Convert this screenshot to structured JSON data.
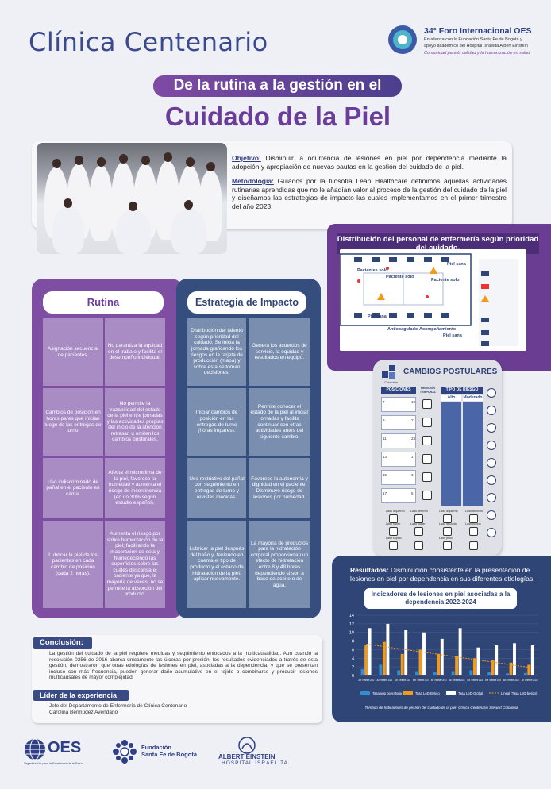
{
  "header": {
    "clinic": "Clínica Centenario",
    "forum_title": "34° Foro Internacional OES",
    "forum_sub1": "En alianza con la Fundación Santa Fe de Bogotá y",
    "forum_sub2": "apoyo académico del Hospital Israelita Albert Einstein",
    "forum_tag": "Comunidad para la calidad y la humanización en salud"
  },
  "title": {
    "line1": "De la rutina a la gestión en el",
    "line2": "Cuidado de la Piel"
  },
  "intro": {
    "objective_label": "Objetivo:",
    "objective": " Disminuir la ocurrencia de lesiones en piel por dependencia mediante la adopción y apropiación de nuevas pautas en la gestión del cuidado de la piel.",
    "method_label": "Metodología:",
    "method": " Guiados por la filosofía Lean Healthcare definimos aquellas actividades rutinarias aprendidas que no le añadían valor al proceso de la gestión del cuidado de la piel y diseñamos las estrategias de impacto las cuales implementamos en el primer trimestre del año 2023."
  },
  "distribution": {
    "title": "Distribución del personal de enfermería según prioridad del cuidado.",
    "labels": [
      "Pacientes solo",
      "Paciente solo",
      "Piel sana",
      "Paciente solo",
      "Piel sana",
      "Anticoagulado",
      "Acompañamiento",
      "Piel sana"
    ]
  },
  "rutina": {
    "title": "Rutina",
    "rows": [
      {
        "a": "Asignación secuencial de pacientes.",
        "b": "No garantiza la equidad en el trabajo y facilita el desempeño individual."
      },
      {
        "a": "Cambios de posición en horas pares que inician luego de las entregas de turno.",
        "b": "No permite la trazabilidad del estado de la piel entre jornadas y las actividades propias del inicio de la atención retrasan u omiten los cambios posturales."
      },
      {
        "a": "Uso indiscriminado de pañal en el paciente en cama.",
        "b": "Afecta el microclima de la piel, favorece la humedad y aumenta el riesgo de incontinencia (en un 30% según estudio español)."
      },
      {
        "a": "Lubricar la piel de los pacientes en cada cambio de posición (cada 2 horas).",
        "b": "Aumenta el riesgo por sobre humectación de la piel, facilitando la maceración de esta y humedeciendo las superficies sobre las cuales descansa el paciente ya que, la mayoría de veces, no se permite la absorción del producto."
      }
    ]
  },
  "estrategia": {
    "title": "Estrategia de Impacto",
    "rows": [
      {
        "a": "Distribución del talento según prioridad del cuidado. Se inicia la jornada graficando los riesgos en la tarjeta de producción (mapa) y sobre esta se toman decisiones.",
        "b": "Genera los acuerdos de servicio, la equidad y resultados en equipo."
      },
      {
        "a": "Iniciar cambios de posición en las entregas de turno (horas impares).",
        "b": "Permite conocer el estado de la piel al iniciar jornadas y facilita continuar con otras actividades antes del siguiente cambio."
      },
      {
        "a": "Uso restrictivo del pañal con seguimiento en entregas de turno y revistas médicas.",
        "b": "Favorece la autonomía y dignidad en el paciente. Disminuye riesgo de lesiones por humedad."
      },
      {
        "a": "Lubricar la piel después del baño y, teniendo en cuenta el tipo de producto y el estado de hidratación de la piel, aplicar nuevamente.",
        "b": "La mayoría de productos para la hidratación corporal proporcionan un efecto de hidratación entre 8 y 48 horas dependiendo si son a base de aceite o de agua."
      }
    ]
  },
  "posture": {
    "title": "CAMBIOS POSTULARES",
    "brand": "Colombia",
    "col_positions": "POSICIONES",
    "col_time": "MEDICIÓN TEMPORAL",
    "col_risk": "TIPO DE RIESGO",
    "risk_high": "Alto",
    "risk_mod": "Moderado",
    "numbers": [
      "7",
      "9",
      "11",
      "13",
      "15",
      "17"
    ],
    "side_numbers": [
      "19",
      "21",
      "23",
      "1",
      "3",
      "5"
    ],
    "bottom_labels": [
      "Lado izquierdo",
      "Lado derecho",
      "Lado izquierdo",
      "Lado derecho",
      "Lado fowler",
      "Lado fowler",
      "Lado decúbito",
      "Lado supino",
      "Lado supino",
      "Lado prono"
    ]
  },
  "results": {
    "label": "Resultados:",
    "text": " Disminución consistente en la presentación de lesiones en piel por dependencia en sus diferentes etiologías."
  },
  "chart_data": {
    "type": "bar",
    "title": "Indicadores de lesiones en piel asociadas a la dependencia 2022-2024",
    "categories": [
      "Abr Trimestre 2022",
      "Jul Trimestre 2022",
      "Oct Trimestre 2022",
      "Ene Trimestre 2023",
      "Abr Trimestre 2023",
      "Jul Trimestre 2023",
      "Oct Trimestre 2023",
      "Ene Trimestre 2024",
      "Abr Trimestre 2024",
      "Jul Trimestre 2024"
    ],
    "series": [
      {
        "name": "Tasa upp operatoria",
        "color": "#2d8fd6",
        "values": [
          1.5,
          2.5,
          1.2,
          1.0,
          0.8,
          1.0,
          1.2,
          0.8,
          0.5,
          0.6
        ]
      },
      {
        "name": "Tasa LeD-Betico",
        "color": "#f29a1a",
        "values": [
          7.0,
          7.8,
          5.0,
          6.0,
          5.0,
          4.5,
          4.0,
          3.5,
          3.0,
          2.5
        ]
      },
      {
        "name": "Tasa LeD-Global",
        "color": "#ffffff",
        "values": [
          11.0,
          12.0,
          10.5,
          10.0,
          8.5,
          11.0,
          6.5,
          7.0,
          7.5,
          7.0
        ]
      },
      {
        "name": "Lineal (Tasa LeD-betico)",
        "color": "#f29a1a",
        "values": [
          7.3,
          6.7,
          6.1,
          5.5,
          4.9,
          4.3,
          3.7,
          3.1,
          2.5,
          1.9
        ]
      }
    ],
    "yticks": [
      0,
      2,
      4,
      6,
      8,
      10,
      12,
      14
    ],
    "ylim": [
      0,
      14
    ],
    "caption": "Tomado de Indicadores de gestión del cuidado de la piel- Clínica Centenario Stewart Colombia"
  },
  "conclusion": {
    "title": "Conclusión:",
    "text": "La gestión del cuidado de la piel requiere medidas y seguimiento enfocados a la multicausalidad. Aun cuando la resolución 0256 de 2016 abarca únicamente las úlceras por presión, los resultados evidenciados a través de esta gestión, demostraron que otras etiologías de lesiones en piel, asociadas a la dependencia, y que se presentan incluso con más frecuencia, pueden generar daño acumulativo en el tejido o combinarse y producir lesiones multicausales de mayor complejidad.",
    "leader_title": "Líder de la experiencia",
    "leader_1": "Jefe del Departamento de Enfermería de Clínica Centenario",
    "leader_2": "Carolina Bermúdez Avendaño"
  },
  "footer": {
    "oes": "OES",
    "oes_tag": "Organización para la Excelencia de la Salud",
    "fsfb_1": "Fundación",
    "fsfb_2": "Santa Fe de Bogotá",
    "ae_1": "ALBERT EINSTEIN",
    "ae_2": "HOSPITAL ISRAELITA"
  }
}
